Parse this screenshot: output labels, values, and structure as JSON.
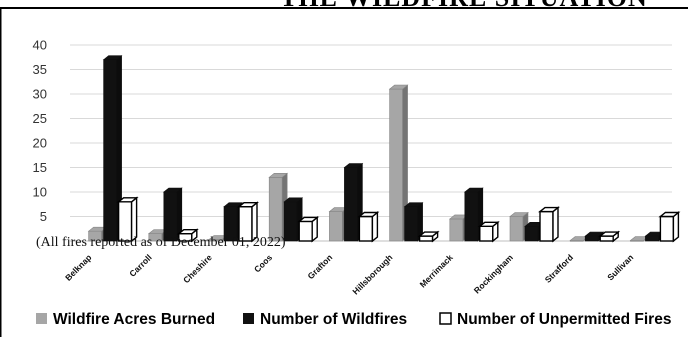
{
  "header_text": "THE WILDFIRE SITUATION",
  "note": "(All fires reported as of December 01, 2022)",
  "chart_data": {
    "type": "bar",
    "title": "",
    "xlabel": "",
    "ylabel": "",
    "ylim": [
      0,
      40
    ],
    "yticks": [
      5,
      10,
      15,
      20,
      25,
      30,
      35,
      40
    ],
    "grid": true,
    "legend_position": "bottom",
    "categories": [
      "Belknap",
      "Carroll",
      "Cheshire",
      "Coos",
      "Grafton",
      "Hillsborough",
      "Merrimack",
      "Rockingham",
      "Strafford",
      "Sullivan"
    ],
    "series": [
      {
        "name": "Wildfire Acres Burned",
        "color": "#a6a6a6",
        "values": [
          2,
          1.5,
          0.3,
          13,
          6,
          31,
          4.5,
          5,
          0.1,
          0.1
        ]
      },
      {
        "name": "Number of Wildfires",
        "color": "#111111",
        "values": [
          37,
          10,
          7,
          8,
          15,
          7,
          10,
          3,
          1,
          1
        ]
      },
      {
        "name": "Number of Unpermitted Fires",
        "color": "#ffffff",
        "values": [
          8,
          1.5,
          7,
          4,
          5,
          1,
          3,
          6,
          1,
          5
        ]
      }
    ]
  }
}
